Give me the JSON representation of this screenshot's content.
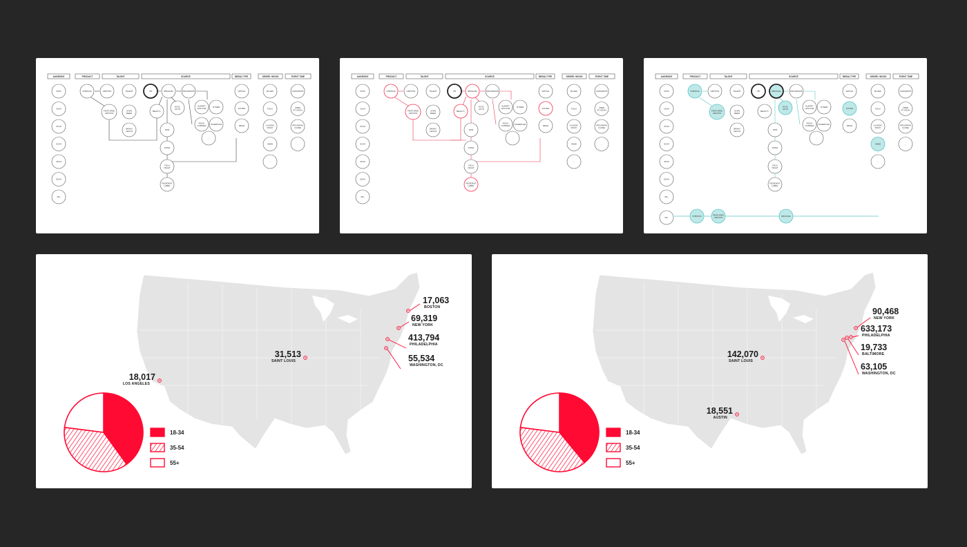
{
  "diagrams": [
    {
      "variant": "plain",
      "highlight_color": "#000000",
      "headers": [
        "AUDIENCE",
        "PRODUCT",
        "TALENT",
        "SOURCE",
        "MEDIA TYPE",
        "GENRE / MOOD",
        "EVENT TIME"
      ],
      "audience": [
        "KIDS",
        "18-24",
        "25-34",
        "35-44",
        "45-54",
        "55-64",
        "65+"
      ],
      "product": [
        "STRINGS"
      ],
      "talent": [
        "ARTISTS",
        "TALENT",
        "FEATURED ARTISTS",
        "JOHN REED",
        "BRIAN LEACH"
      ],
      "source": [
        "VIP",
        "ORIGINAL",
        "PROGRAMS",
        "SPR",
        "ATWO",
        "FOLK NIGHT",
        "RESIDENT LABEL",
        "BEAUTY",
        "DUAL ACTS",
        "SLEEPY HOLLOW",
        "OTHER",
        "ROCK CORNER",
        "SCHEDULE",
        "..."
      ],
      "media_type": [
        "WATCH",
        "LISTEN",
        "READ"
      ],
      "genre": [
        "BLUES",
        "FOLK",
        "CLASSIC ROCK",
        "INDIE",
        "..."
      ],
      "event_time": [
        "CONCERTS",
        "FREE AT NOON",
        "PROGRAM GUIDE",
        "..."
      ]
    },
    {
      "variant": "red",
      "highlight_color": "#f0314f",
      "headers": [
        "AUDIENCE",
        "PRODUCT",
        "TALENT",
        "SOURCE",
        "MEDIA TYPE",
        "GENRE / MOOD",
        "EVENT TIME"
      ],
      "audience": [
        "KIDS",
        "18-24",
        "25-34",
        "35-44",
        "45-54",
        "55-64",
        "65+"
      ],
      "product": [
        "STRINGS"
      ],
      "talent": [
        "ARTISTS",
        "TALENT",
        "FEATURED ARTISTS",
        "JOHN REED",
        "BRIAN LEACH"
      ],
      "source": [
        "VIP",
        "ORIGINAL",
        "PROGRAMS",
        "SPR",
        "ATWO",
        "FOLK NIGHT",
        "RESIDENT LABEL",
        "BEAUTY",
        "DUAL ACTS",
        "SLEEPY HOLLOW",
        "OTHER",
        "ROCK CORNER",
        "SCHEDULE",
        "..."
      ],
      "media_type": [
        "WATCH",
        "LISTEN",
        "READ"
      ],
      "genre": [
        "BLUES",
        "FOLK",
        "CLASSIC ROCK",
        "INDIE",
        "..."
      ],
      "event_time": [
        "CONCERTS",
        "FREE AT NOON",
        "PROGRAM GUIDE",
        "..."
      ]
    },
    {
      "variant": "teal",
      "highlight_color": "#5cc4c4",
      "headers": [
        "AUDIENCE",
        "PRODUCT",
        "TALENT",
        "SOURCE",
        "MEDIA TYPE",
        "GENRE / MOOD",
        "EVENT TIME"
      ],
      "audience": [
        "KIDS",
        "18-24",
        "25-34",
        "35-44",
        "45-54",
        "55-64",
        "65+",
        "65+"
      ],
      "product": [
        "STRINGS"
      ],
      "talent": [
        "ARTISTS",
        "TALENT",
        "FEATURED ARTISTS",
        "JOHN REED",
        "BRIAN LEACH"
      ],
      "source": [
        "VIP",
        "ORIGINAL",
        "PROGRAMS",
        "SPR",
        "ATWO",
        "FOLK NIGHT",
        "RESIDENT LABEL",
        "BEAUTY",
        "DUAL ACTS",
        "SLEEPY HOLLOW",
        "OTHER",
        "ROCK CORNER",
        "SCHEDULE",
        "..."
      ],
      "media_type": [
        "WATCH",
        "LISTEN",
        "READ"
      ],
      "genre": [
        "BLUES",
        "FOLK",
        "CLASSIC ROCK",
        "INDIE",
        "..."
      ],
      "event_time": [
        "CONCERTS",
        "FREE AT NOON",
        "PROGRAM GUIDE",
        "..."
      ],
      "bottom_path": [
        "STRINGS",
        "FEATURED ARTISTS",
        "ORIGINAL"
      ]
    }
  ],
  "maps": [
    {
      "accent": "#ff0a33",
      "cities": [
        {
          "value": "17,063",
          "name": "BOSTON"
        },
        {
          "value": "69,319",
          "name": "NEW YORK"
        },
        {
          "value": "413,794",
          "name": "PHILADELPHIA"
        },
        {
          "value": "55,534",
          "name": "WASHINGTON, DC"
        },
        {
          "value": "31,513",
          "name": "SAINT LOUIS"
        },
        {
          "value": "18,017",
          "name": "LOS ANGELES"
        }
      ],
      "pie": [
        {
          "label": "18-34",
          "value": 0.4,
          "pattern": "solid"
        },
        {
          "label": "35-54",
          "value": 0.37,
          "pattern": "hatch"
        },
        {
          "label": "55+",
          "value": 0.23,
          "pattern": "outline"
        }
      ]
    },
    {
      "accent": "#ff0a33",
      "cities": [
        {
          "value": "90,468",
          "name": "NEW YORK"
        },
        {
          "value": "633,173",
          "name": "PHILADELPHIA"
        },
        {
          "value": "19,733",
          "name": "BALTIMORE"
        },
        {
          "value": "63,105",
          "name": "WASHINGTON, DC"
        },
        {
          "value": "142,070",
          "name": "SAINT LOUIS"
        },
        {
          "value": "18,551",
          "name": "AUSTIN"
        }
      ],
      "pie": [
        {
          "label": "18-34",
          "value": 0.39,
          "pattern": "solid"
        },
        {
          "label": "35-54",
          "value": 0.38,
          "pattern": "hatch"
        },
        {
          "label": "55+",
          "value": 0.23,
          "pattern": "outline"
        }
      ]
    }
  ]
}
